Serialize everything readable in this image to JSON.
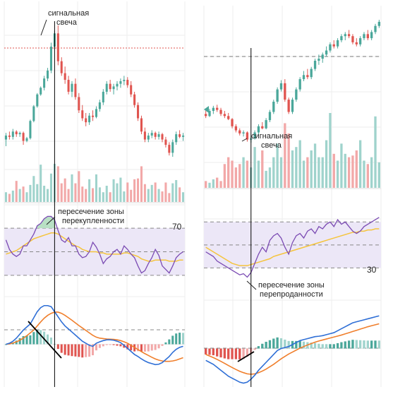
{
  "chart_data": [
    {
      "type": "candlestick",
      "panel": "left",
      "annotations": {
        "signal_candle_line1": "сигнальная",
        "signal_candle_line2": "свеча",
        "crossing_line1": "пересечение зоны",
        "crossing_line2": "перекупленности"
      },
      "rsi_level_label": "70",
      "candles": [
        [
          7.0,
          7.5,
          6.5,
          7.3
        ],
        [
          7.3,
          7.6,
          7.0,
          7.2
        ],
        [
          7.2,
          7.8,
          7.0,
          7.6
        ],
        [
          7.6,
          7.7,
          7.2,
          7.4
        ],
        [
          7.4,
          7.6,
          7.2,
          7.5
        ],
        [
          7.5,
          7.6,
          6.6,
          6.9
        ],
        [
          6.9,
          7.2,
          6.8,
          7.1
        ],
        [
          7.1,
          8.5,
          7.0,
          8.4
        ],
        [
          8.4,
          9.6,
          8.3,
          9.5
        ],
        [
          9.5,
          10.5,
          9.4,
          10.4
        ],
        [
          10.4,
          11.0,
          10.3,
          10.9
        ],
        [
          10.9,
          11.8,
          10.7,
          11.6
        ],
        [
          11.6,
          12.4,
          11.4,
          12.2
        ],
        [
          12.2,
          14.3,
          12.0,
          14.0
        ],
        [
          14.0,
          15.2,
          13.8,
          15.0
        ],
        [
          15.0,
          15.6,
          12.6,
          12.9
        ],
        [
          12.9,
          13.2,
          11.8,
          12.0
        ],
        [
          12.0,
          12.5,
          11.2,
          11.5
        ],
        [
          11.5,
          11.8,
          10.4,
          10.6
        ],
        [
          10.6,
          11.4,
          10.2,
          11.2
        ],
        [
          11.2,
          11.6,
          10.0,
          10.2
        ],
        [
          10.2,
          10.5,
          9.0,
          9.2
        ],
        [
          9.2,
          9.6,
          8.4,
          8.6
        ],
        [
          8.6,
          9.0,
          8.0,
          8.3
        ],
        [
          8.3,
          9.0,
          8.1,
          8.8
        ],
        [
          8.8,
          9.2,
          8.4,
          8.7
        ],
        [
          8.7,
          9.5,
          8.6,
          9.3
        ],
        [
          9.3,
          10.0,
          9.1,
          9.8
        ],
        [
          9.8,
          10.8,
          9.6,
          10.6
        ],
        [
          10.6,
          11.4,
          10.4,
          11.2
        ],
        [
          11.2,
          11.5,
          10.6,
          10.8
        ],
        [
          10.8,
          11.2,
          10.4,
          11.0
        ],
        [
          11.0,
          11.4,
          10.7,
          11.2
        ],
        [
          11.2,
          11.6,
          10.9,
          11.4
        ],
        [
          11.4,
          11.8,
          11.1,
          11.5
        ],
        [
          11.5,
          11.7,
          10.9,
          11.1
        ],
        [
          11.1,
          11.4,
          10.2,
          10.4
        ],
        [
          10.4,
          10.6,
          9.4,
          9.6
        ],
        [
          9.6,
          9.8,
          8.4,
          8.6
        ],
        [
          8.6,
          8.8,
          7.4,
          7.6
        ],
        [
          7.6,
          7.9,
          6.8,
          7.0
        ],
        [
          7.0,
          7.5,
          6.8,
          7.3
        ],
        [
          7.3,
          7.7,
          7.1,
          7.5
        ],
        [
          7.5,
          7.6,
          7.0,
          7.2
        ],
        [
          7.2,
          7.6,
          7.0,
          7.4
        ],
        [
          7.4,
          7.5,
          6.8,
          7.0
        ],
        [
          7.0,
          7.2,
          6.4,
          6.6
        ],
        [
          6.6,
          6.8,
          5.8,
          6.0
        ],
        [
          6.0,
          7.0,
          5.7,
          6.8
        ],
        [
          6.8,
          7.6,
          6.6,
          7.4
        ],
        [
          7.4,
          7.7,
          7.1,
          7.2
        ],
        [
          7.2,
          7.5,
          6.9,
          7.3
        ]
      ],
      "volumes": [
        1.2,
        1.0,
        1.4,
        2.6,
        1.6,
        1.9,
        1.2,
        2.1,
        3.2,
        2.2,
        4.6,
        2.0,
        1.6,
        3.5,
        4.7,
        4.4,
        2.3,
        2.9,
        1.6,
        3.4,
        2.3,
        3.8,
        1.9,
        1.6,
        2.8,
        1.7,
        3.4,
        1.8,
        1.2,
        2.0,
        1.2,
        2.8,
        2.3,
        3.0,
        1.3,
        2.4,
        1.5,
        2.8,
        2.9,
        4.4,
        2.2,
        1.6,
        2.1,
        2.4,
        1.6,
        1.3,
        2.4,
        1.1,
        2.3,
        2.7,
        1.8,
        1.2
      ],
      "rsi": [
        60,
        52,
        48,
        46,
        48,
        55,
        55,
        60,
        65,
        72,
        74,
        78,
        80,
        80,
        77,
        68,
        60,
        58,
        62,
        55,
        55,
        48,
        45,
        46,
        50,
        58,
        54,
        48,
        40,
        44,
        46,
        50,
        52,
        48,
        55,
        52,
        48,
        45,
        38,
        32,
        34,
        40,
        45,
        52,
        47,
        38,
        35,
        32,
        38,
        45,
        48,
        50
      ],
      "rsi_ma": [
        48,
        49,
        50,
        51,
        53,
        55,
        57,
        59,
        61,
        62,
        63,
        64,
        65,
        66,
        66,
        65,
        63,
        61,
        59,
        57,
        55,
        54,
        52,
        51,
        50,
        50,
        50,
        49,
        49,
        48,
        48,
        48,
        48,
        48,
        49,
        49,
        48,
        47,
        46,
        44,
        43,
        42,
        42,
        43,
        43,
        43,
        43,
        42,
        42,
        42,
        43,
        43
      ],
      "macd": [
        0.0,
        0.05,
        0.15,
        0.3,
        0.5,
        0.7,
        0.85,
        1.0,
        1.3,
        1.6,
        1.8,
        1.9,
        1.9,
        1.85,
        1.6,
        1.35,
        1.1,
        0.9,
        0.75,
        0.6,
        0.45,
        0.3,
        0.15,
        0.05,
        -0.05,
        -0.1,
        0.05,
        0.12,
        0.18,
        0.22,
        0.22,
        0.2,
        0.15,
        0.08,
        -0.05,
        -0.2,
        -0.35,
        -0.5,
        -0.6,
        -0.72,
        -0.82,
        -0.9,
        -0.95,
        -1.0,
        -0.98,
        -0.9,
        -0.75,
        -0.6,
        -0.4,
        -0.25,
        -0.15,
        -0.1
      ],
      "macd_signal": [
        0.0,
        0.02,
        0.06,
        0.12,
        0.2,
        0.3,
        0.42,
        0.56,
        0.7,
        0.9,
        1.1,
        1.28,
        1.42,
        1.52,
        1.58,
        1.58,
        1.52,
        1.42,
        1.3,
        1.18,
        1.05,
        0.92,
        0.8,
        0.68,
        0.56,
        0.44,
        0.35,
        0.3,
        0.28,
        0.26,
        0.25,
        0.24,
        0.22,
        0.18,
        0.12,
        0.05,
        -0.05,
        -0.15,
        -0.26,
        -0.36,
        -0.46,
        -0.55,
        -0.64,
        -0.72,
        -0.78,
        -0.82,
        -0.84,
        -0.84,
        -0.82,
        -0.78,
        -0.72,
        -0.66
      ],
      "signal_candle_index": 14,
      "rsi_cross_index": 15,
      "rsi_level": 70
    },
    {
      "type": "candlestick",
      "panel": "right",
      "annotations": {
        "signal_candle_line1": "сигнальная",
        "signal_candle_line2": "свеча",
        "crossing_line1": "пересечение зоны",
        "crossing_line2": "перепроданности"
      },
      "rsi_level_label": "30",
      "candles": [
        [
          9.0,
          9.4,
          8.6,
          8.8
        ],
        [
          8.8,
          9.5,
          8.7,
          9.3
        ],
        [
          9.3,
          9.8,
          9.0,
          9.6
        ],
        [
          9.6,
          9.9,
          9.2,
          9.4
        ],
        [
          9.4,
          9.6,
          8.8,
          9.0
        ],
        [
          9.0,
          9.3,
          8.6,
          8.8
        ],
        [
          8.8,
          9.1,
          8.4,
          8.5
        ],
        [
          8.5,
          8.6,
          7.6,
          7.8
        ],
        [
          7.8,
          8.0,
          7.2,
          7.4
        ],
        [
          7.4,
          7.6,
          6.9,
          7.1
        ],
        [
          7.1,
          7.4,
          6.8,
          7.2
        ],
        [
          7.2,
          7.3,
          6.3,
          6.5
        ],
        [
          6.5,
          6.8,
          6.2,
          6.6
        ],
        [
          6.6,
          7.4,
          6.5,
          7.2
        ],
        [
          7.2,
          8.0,
          7.0,
          7.8
        ],
        [
          7.8,
          8.2,
          7.5,
          7.6
        ],
        [
          7.6,
          8.6,
          7.5,
          8.4
        ],
        [
          8.4,
          9.4,
          8.2,
          9.2
        ],
        [
          9.2,
          10.4,
          9.0,
          10.2
        ],
        [
          10.2,
          11.6,
          10.0,
          11.4
        ],
        [
          11.4,
          12.3,
          11.2,
          12.0
        ],
        [
          12.0,
          12.4,
          10.2,
          10.4
        ],
        [
          10.4,
          10.6,
          9.0,
          9.2
        ],
        [
          9.2,
          10.6,
          9.0,
          10.4
        ],
        [
          10.4,
          11.6,
          10.2,
          11.4
        ],
        [
          11.4,
          12.6,
          11.2,
          12.4
        ],
        [
          12.4,
          13.2,
          12.2,
          12.8
        ],
        [
          12.8,
          13.4,
          12.4,
          12.6
        ],
        [
          12.6,
          13.6,
          12.4,
          13.4
        ],
        [
          13.4,
          14.4,
          13.2,
          14.2
        ],
        [
          14.2,
          14.8,
          13.8,
          14.4
        ],
        [
          14.4,
          15.0,
          14.0,
          14.8
        ],
        [
          14.8,
          15.6,
          14.6,
          15.2
        ],
        [
          15.2,
          16.0,
          15.0,
          15.8
        ],
        [
          15.8,
          16.2,
          15.4,
          15.6
        ],
        [
          15.6,
          16.4,
          15.4,
          16.2
        ],
        [
          16.2,
          16.8,
          16.0,
          16.6
        ],
        [
          16.6,
          17.0,
          16.2,
          16.8
        ],
        [
          16.8,
          17.2,
          16.4,
          16.6
        ],
        [
          16.6,
          16.8,
          15.8,
          16.0
        ],
        [
          16.0,
          16.4,
          15.6,
          15.8
        ],
        [
          15.8,
          16.6,
          15.6,
          16.4
        ],
        [
          16.4,
          17.0,
          16.2,
          16.8
        ],
        [
          16.8,
          17.2,
          16.2,
          16.4
        ],
        [
          16.4,
          17.2,
          16.2,
          17.0
        ],
        [
          17.0,
          17.8,
          16.8,
          17.6
        ],
        [
          17.6,
          18.2,
          17.4,
          18.0
        ]
      ],
      "volumes": [
        0.4,
        0.3,
        0.5,
        0.6,
        0.4,
        1.4,
        1.8,
        1.6,
        1.2,
        1.4,
        1.8,
        1.6,
        1.2,
        2.4,
        1.6,
        2.2,
        1.0,
        1.2,
        1.8,
        2.6,
        1.8,
        3.8,
        3.2,
        2.2,
        2.4,
        2.8,
        1.6,
        1.8,
        2.2,
        2.6,
        1.8,
        1.8,
        2.8,
        4.4,
        2.0,
        1.6,
        2.6,
        2.0,
        1.8,
        1.9,
        2.2,
        2.8,
        1.6,
        1.4,
        1.8,
        4.2,
        1.5
      ],
      "rsi": [
        44,
        42,
        40,
        36,
        34,
        32,
        30,
        28,
        26,
        24,
        25,
        22,
        26,
        34,
        42,
        48,
        44,
        54,
        58,
        60,
        56,
        48,
        42,
        52,
        58,
        60,
        56,
        62,
        64,
        60,
        66,
        64,
        68,
        70,
        66,
        72,
        68,
        70,
        66,
        62,
        60,
        62,
        66,
        68,
        70,
        72,
        74
      ],
      "rsi_ma": [
        48,
        46,
        44,
        42,
        40,
        38,
        36,
        34,
        33,
        32,
        32,
        32,
        33,
        34,
        35,
        36,
        37,
        38,
        40,
        41,
        42,
        43,
        44,
        45,
        46,
        47,
        48,
        49,
        50,
        51,
        52,
        53,
        54,
        55,
        56,
        57,
        58,
        59,
        60,
        61,
        61,
        62,
        62,
        63,
        63,
        64,
        64
      ],
      "macd": [
        -0.6,
        -0.7,
        -0.8,
        -0.95,
        -1.1,
        -1.25,
        -1.4,
        -1.5,
        -1.6,
        -1.7,
        -1.75,
        -1.7,
        -1.55,
        -1.35,
        -1.1,
        -0.9,
        -0.7,
        -0.5,
        -0.3,
        -0.1,
        0.0,
        0.05,
        0.1,
        0.2,
        0.3,
        0.4,
        0.45,
        0.5,
        0.55,
        0.6,
        0.62,
        0.65,
        0.7,
        0.75,
        0.8,
        0.9,
        1.0,
        1.1,
        1.2,
        1.3,
        1.35,
        1.4,
        1.45,
        1.5,
        1.55,
        1.6,
        1.65
      ],
      "macd_signal": [
        -0.3,
        -0.38,
        -0.46,
        -0.55,
        -0.65,
        -0.75,
        -0.86,
        -0.96,
        -1.06,
        -1.15,
        -1.22,
        -1.28,
        -1.3,
        -1.28,
        -1.22,
        -1.14,
        -1.04,
        -0.92,
        -0.8,
        -0.66,
        -0.52,
        -0.4,
        -0.28,
        -0.18,
        -0.08,
        0.02,
        0.1,
        0.18,
        0.25,
        0.32,
        0.38,
        0.43,
        0.48,
        0.53,
        0.58,
        0.63,
        0.68,
        0.74,
        0.8,
        0.86,
        0.92,
        0.98,
        1.04,
        1.1,
        1.15,
        1.2,
        1.25
      ],
      "signal_candle_index": 12,
      "rsi_cross_index": 12,
      "rsi_level": 30
    }
  ],
  "colors": {
    "bull": "#4aa79a",
    "bear": "#e0544f",
    "bull_light": "#9fd3cc",
    "bear_light": "#f2a8a8",
    "rsi_line": "#7b4bb3",
    "rsi_ma": "#f5c43c",
    "rsi_band": "#ece7f7",
    "macd_line": "#2f6fd6",
    "macd_signal": "#f07f2c",
    "grid": "#eeeeee",
    "dashed": "#888888",
    "dotted_red": "#e0544f",
    "marker_line": "#000000",
    "overbought_fill": "#b8e0c4"
  }
}
